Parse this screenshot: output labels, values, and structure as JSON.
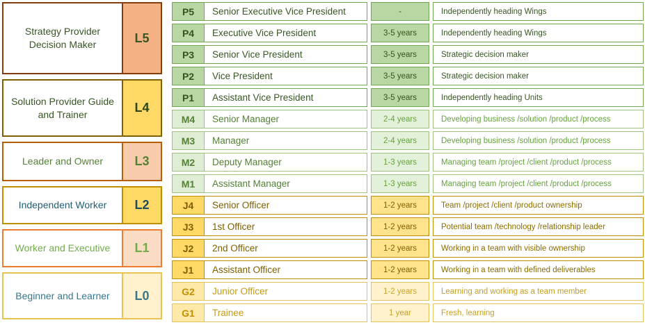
{
  "palette": {
    "p_border": "#6FA84F",
    "p_fill": "#B9D7A4",
    "p_text": "#375623",
    "m_border": "#9CC27E",
    "m_fill": "#DFEDD4",
    "m_text": "#538135",
    "j_border": "#BF8F00",
    "j_fill": "#FFD966",
    "j_text": "#7F6000",
    "g_border": "#E3C35B",
    "g_fill": "#FFE9A9",
    "g_text": "#BF9000",
    "l5_tab": "#F4B183",
    "l4_tab": "#FFD966",
    "l3_tab": "#F8CBAD",
    "l2_tab": "#FFD966",
    "l1_tab": "#FADCC5",
    "l0_tab": "#FFF2CC",
    "teal_text": "#1F5C73",
    "steel_text": "#36788F"
  },
  "levels": [
    {
      "id": "L5",
      "label": "Strategy Provider Decision Maker"
    },
    {
      "id": "L4",
      "label": "Solution Provider Guide and Trainer"
    },
    {
      "id": "L3",
      "label": "Leader and Owner"
    },
    {
      "id": "L2",
      "label": "Independent Worker"
    },
    {
      "id": "L1",
      "label": "Worker and Executive"
    },
    {
      "id": "L0",
      "label": "Beginner and Learner"
    }
  ],
  "rows": [
    {
      "code": "P5",
      "band": "P",
      "title": "Senior Executive Vice President",
      "years": "-",
      "desc": "Independently heading Wings"
    },
    {
      "code": "P4",
      "band": "P",
      "title": "Executive Vice President",
      "years": "3-5 years",
      "desc": "Independently heading Wings"
    },
    {
      "code": "P3",
      "band": "P",
      "title": "Senior Vice President",
      "years": "3-5 years",
      "desc": "Strategic decision maker"
    },
    {
      "code": "P2",
      "band": "P",
      "title": "Vice President",
      "years": "3-5 years",
      "desc": "Strategic decision maker"
    },
    {
      "code": "P1",
      "band": "P",
      "title": "Assistant Vice President",
      "years": "3-5 years",
      "desc": "Independently heading Units"
    },
    {
      "code": "M4",
      "band": "M",
      "title": "Senior Manager",
      "years": "2-4 years",
      "desc": "Developing business /solution /product /process"
    },
    {
      "code": "M3",
      "band": "M",
      "title": "Manager",
      "years": "2-4 years",
      "desc": "Developing business /solution /product /process"
    },
    {
      "code": "M2",
      "band": "M",
      "title": "Deputy Manager",
      "years": "1-3 years",
      "desc": "Managing team /project /client /product /process"
    },
    {
      "code": "M1",
      "band": "M",
      "title": "Assistant Manager",
      "years": "1-3 years",
      "desc": "Managing team /project /client /product /process"
    },
    {
      "code": "J4",
      "band": "J",
      "title": "Senior Officer",
      "years": "1-2 years",
      "desc": "Team /project /client /product ownership"
    },
    {
      "code": "J3",
      "band": "J",
      "title": "1st Officer",
      "years": "1-2 years",
      "desc": "Potential team /technology /relationship leader"
    },
    {
      "code": "J2",
      "band": "J",
      "title": "2nd Officer",
      "years": "1-2 years",
      "desc": "Working in a team with visible ownership"
    },
    {
      "code": "J1",
      "band": "J",
      "title": "Assistant Officer",
      "years": "1-2 years",
      "desc": "Working in a team with defined deliverables"
    },
    {
      "code": "G2",
      "band": "G",
      "title": "Junior Officer",
      "years": "1-2 years",
      "desc": "Learning and working as a team member"
    },
    {
      "code": "G1",
      "band": "G",
      "title": "Trainee",
      "years": "1 year",
      "desc": "Fresh, learning"
    }
  ]
}
